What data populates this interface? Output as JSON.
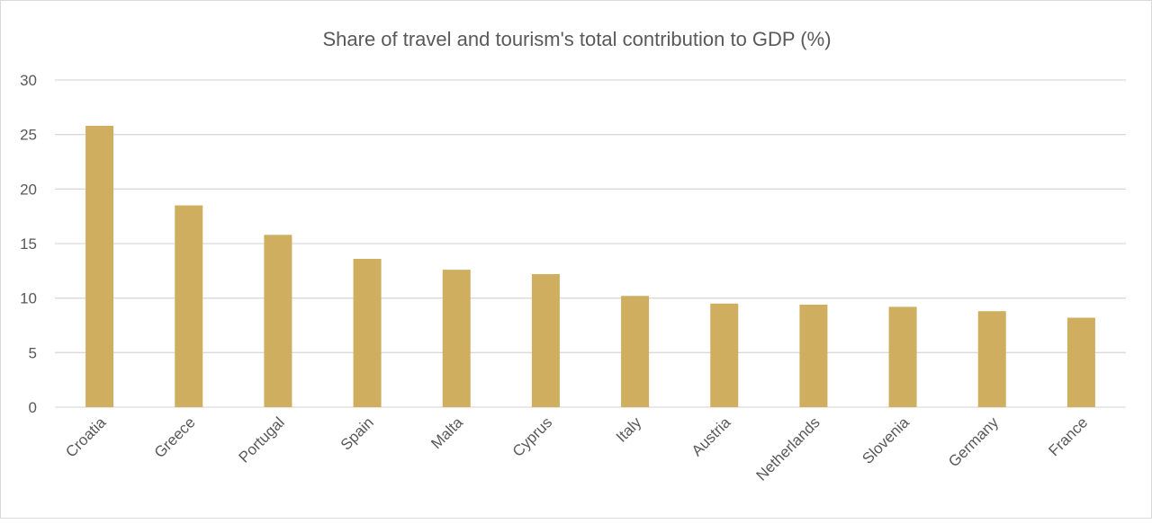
{
  "chart_data": {
    "type": "bar",
    "title": "Share of travel and tourism's total contribution to GDP (%)",
    "categories": [
      "Croatia",
      "Greece",
      "Portugal",
      "Spain",
      "Malta",
      "Cyprus",
      "Italy",
      "Austria",
      "Netherlands",
      "Slovenia",
      "Germany",
      "France"
    ],
    "values": [
      25.8,
      18.5,
      15.8,
      13.6,
      12.6,
      12.2,
      10.2,
      9.5,
      9.4,
      9.2,
      8.8,
      8.2
    ],
    "ylim": [
      0,
      30
    ],
    "yticks": [
      0,
      5,
      10,
      15,
      20,
      25,
      30
    ],
    "xlabel": "",
    "ylabel": "",
    "grid": true,
    "legend": "none",
    "bar_color": "#CFAE5F",
    "grid_color": "#D9D9D9"
  }
}
